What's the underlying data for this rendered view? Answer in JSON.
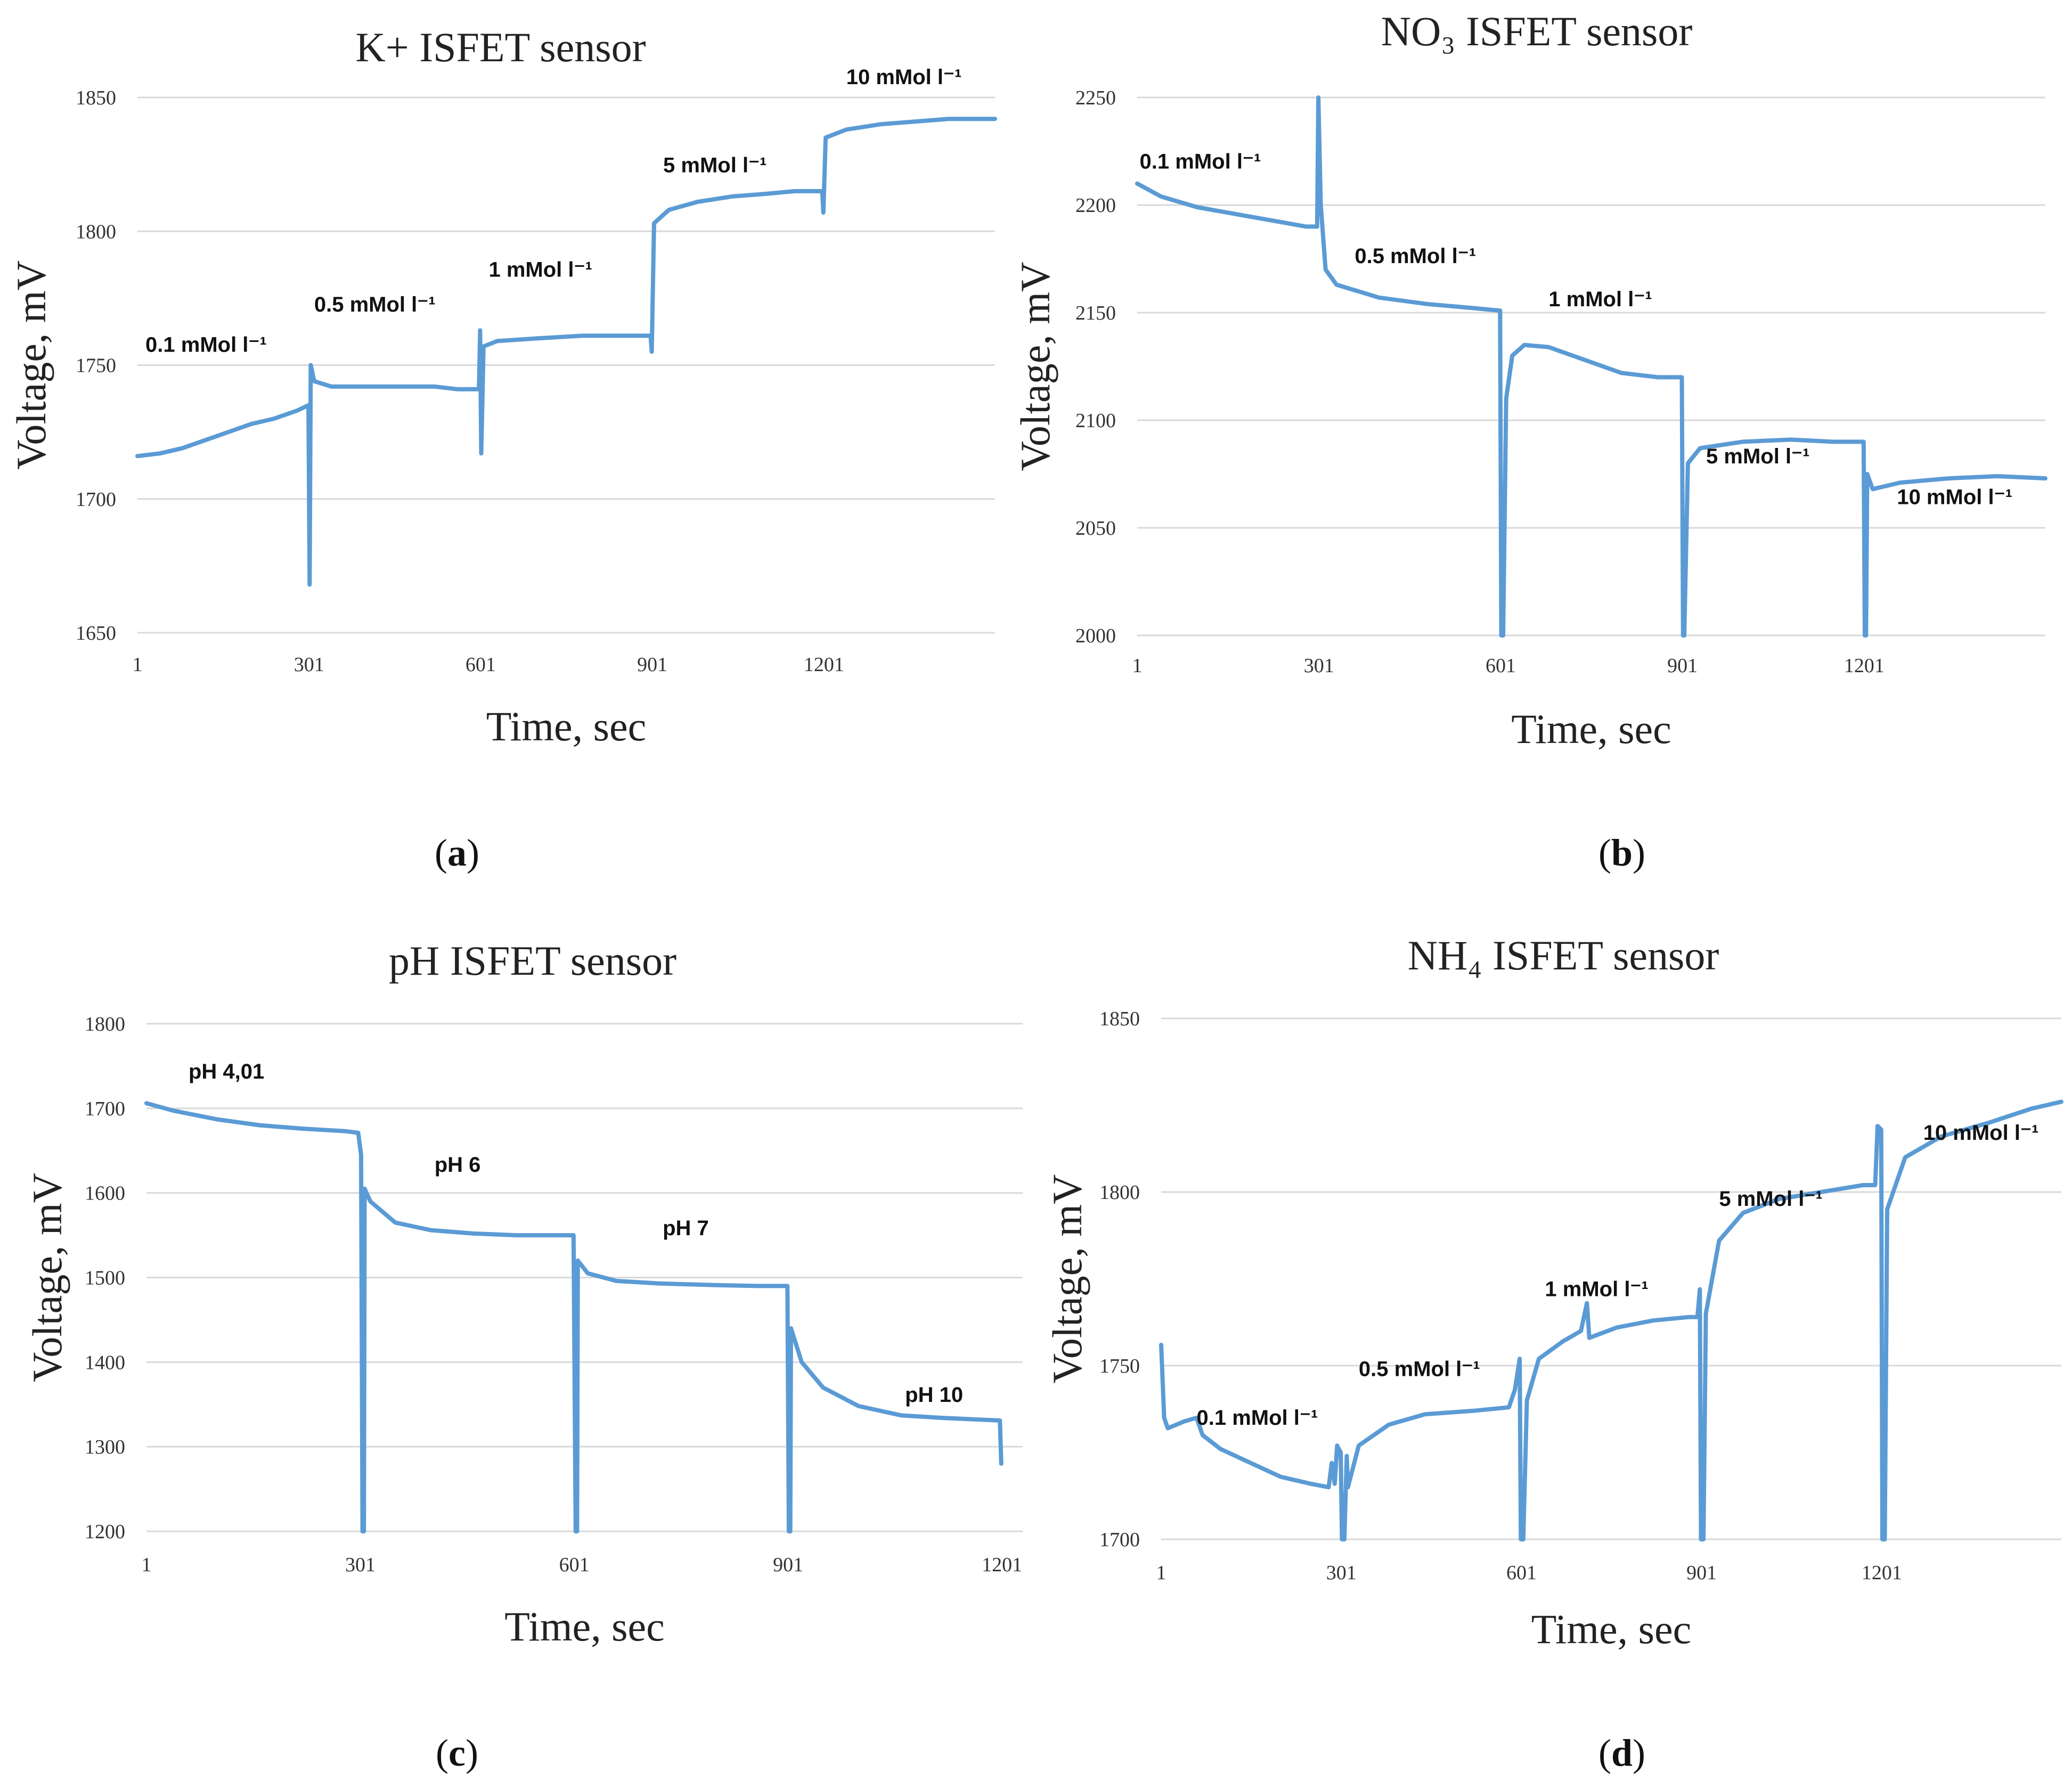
{
  "colors": {
    "series": "#5b9bd5",
    "grid": "#d9d9d9"
  },
  "chart_data": [
    {
      "panel": "a",
      "panel_label": "a",
      "type": "line",
      "title": "K+ ISFET sensor",
      "xlabel": "Time, sec",
      "ylabel": "Voltage, mV",
      "xlim": [
        1,
        1500
      ],
      "ylim": [
        1650,
        1850
      ],
      "yticks": [
        1650,
        1700,
        1750,
        1800,
        1850
      ],
      "xticks": [
        1,
        301,
        601,
        901,
        1201
      ],
      "annotations": [
        {
          "text": "0.1 mMol l⁻¹",
          "x": 15,
          "y": 1755
        },
        {
          "text": "0.5 mMol l⁻¹",
          "x": 310,
          "y": 1770
        },
        {
          "text": "1 mMol l⁻¹",
          "x": 615,
          "y": 1783
        },
        {
          "text": "5 mMol l⁻¹",
          "x": 920,
          "y": 1822
        },
        {
          "text": "10 mMol l⁻¹",
          "x": 1240,
          "y": 1855
        }
      ],
      "series": [
        {
          "name": "K+",
          "points": [
            [
              1,
              1716
            ],
            [
              40,
              1717
            ],
            [
              80,
              1719
            ],
            [
              120,
              1722
            ],
            [
              160,
              1725
            ],
            [
              200,
              1728
            ],
            [
              240,
              1730
            ],
            [
              280,
              1733
            ],
            [
              300,
              1735
            ],
            [
              302,
              1668
            ],
            [
              304,
              1750
            ],
            [
              310,
              1744
            ],
            [
              340,
              1742
            ],
            [
              400,
              1742
            ],
            [
              460,
              1742
            ],
            [
              520,
              1742
            ],
            [
              560,
              1741
            ],
            [
              598,
              1741
            ],
            [
              600,
              1763
            ],
            [
              602,
              1717
            ],
            [
              606,
              1757
            ],
            [
              630,
              1759
            ],
            [
              700,
              1760
            ],
            [
              780,
              1761
            ],
            [
              860,
              1761
            ],
            [
              898,
              1761
            ],
            [
              900,
              1755
            ],
            [
              904,
              1803
            ],
            [
              930,
              1808
            ],
            [
              980,
              1811
            ],
            [
              1040,
              1813
            ],
            [
              1100,
              1814
            ],
            [
              1150,
              1815
            ],
            [
              1198,
              1815
            ],
            [
              1200,
              1807
            ],
            [
              1204,
              1835
            ],
            [
              1240,
              1838
            ],
            [
              1300,
              1840
            ],
            [
              1360,
              1841
            ],
            [
              1420,
              1842
            ],
            [
              1500,
              1842
            ]
          ]
        }
      ]
    },
    {
      "panel": "b",
      "panel_label": "b",
      "type": "line",
      "title": "NO₃ ISFET sensor",
      "xlabel": "Time, sec",
      "ylabel": "Voltage, mV",
      "xlim": [
        1,
        1500
      ],
      "ylim": [
        2000,
        2250
      ],
      "yticks": [
        2000,
        2050,
        2100,
        2150,
        2200,
        2250
      ],
      "xticks": [
        1,
        301,
        601,
        901,
        1201
      ],
      "annotations": [
        {
          "text": "0.1 mMol l⁻¹",
          "x": 5,
          "y": 2217
        },
        {
          "text": "0.5 mMol l⁻¹",
          "x": 360,
          "y": 2173
        },
        {
          "text": "1 mMol l⁻¹",
          "x": 680,
          "y": 2153
        },
        {
          "text": "5 mMol l⁻¹",
          "x": 940,
          "y": 2080
        },
        {
          "text": "10 mMol l⁻¹",
          "x": 1255,
          "y": 2061
        }
      ],
      "series": [
        {
          "name": "NO3",
          "points": [
            [
              1,
              2210
            ],
            [
              40,
              2204
            ],
            [
              100,
              2199
            ],
            [
              160,
              2196
            ],
            [
              220,
              2193
            ],
            [
              280,
              2190
            ],
            [
              298,
              2190
            ],
            [
              300,
              2250
            ],
            [
              304,
              2200
            ],
            [
              312,
              2170
            ],
            [
              330,
              2163
            ],
            [
              400,
              2157
            ],
            [
              480,
              2154
            ],
            [
              560,
              2152
            ],
            [
              598,
              2151
            ],
            [
              600,
              2151
            ],
            [
              602,
              2000
            ],
            [
              605,
              2000
            ],
            [
              610,
              2110
            ],
            [
              620,
              2130
            ],
            [
              640,
              2135
            ],
            [
              680,
              2134
            ],
            [
              740,
              2128
            ],
            [
              800,
              2122
            ],
            [
              860,
              2120
            ],
            [
              898,
              2120
            ],
            [
              900,
              2120
            ],
            [
              902,
              2000
            ],
            [
              904,
              2000
            ],
            [
              910,
              2080
            ],
            [
              930,
              2087
            ],
            [
              1000,
              2090
            ],
            [
              1080,
              2091
            ],
            [
              1150,
              2090
            ],
            [
              1198,
              2090
            ],
            [
              1200,
              2090
            ],
            [
              1202,
              2000
            ],
            [
              1204,
              2000
            ],
            [
              1206,
              2075
            ],
            [
              1215,
              2068
            ],
            [
              1260,
              2071
            ],
            [
              1340,
              2073
            ],
            [
              1420,
              2074
            ],
            [
              1500,
              2073
            ]
          ]
        }
      ]
    },
    {
      "panel": "c",
      "panel_label": "c",
      "type": "line",
      "title": "pH ISFET sensor",
      "xlabel": "Time, sec",
      "ylabel": "Voltage, mV",
      "xlim": [
        1,
        1230
      ],
      "ylim": [
        1200,
        1800
      ],
      "yticks": [
        1200,
        1300,
        1400,
        1500,
        1600,
        1700,
        1800
      ],
      "xticks": [
        1,
        301,
        601,
        901,
        1201
      ],
      "annotations": [
        {
          "text": "pH 4,01",
          "x": 60,
          "y": 1735
        },
        {
          "text": "pH 6",
          "x": 405,
          "y": 1625
        },
        {
          "text": "pH 7",
          "x": 725,
          "y": 1550
        },
        {
          "text": "pH 10",
          "x": 1065,
          "y": 1353
        }
      ],
      "series": [
        {
          "name": "pH",
          "points": [
            [
              1,
              1706
            ],
            [
              40,
              1697
            ],
            [
              100,
              1687
            ],
            [
              160,
              1680
            ],
            [
              220,
              1676
            ],
            [
              280,
              1673
            ],
            [
              298,
              1671
            ],
            [
              302,
              1645
            ],
            [
              304,
              1200
            ],
            [
              306,
              1200
            ],
            [
              307,
              1605
            ],
            [
              315,
              1590
            ],
            [
              350,
              1565
            ],
            [
              400,
              1556
            ],
            [
              460,
              1552
            ],
            [
              520,
              1550
            ],
            [
              598,
              1550
            ],
            [
              600,
              1550
            ],
            [
              603,
              1200
            ],
            [
              605,
              1200
            ],
            [
              606,
              1520
            ],
            [
              620,
              1505
            ],
            [
              660,
              1496
            ],
            [
              720,
              1493
            ],
            [
              800,
              1491
            ],
            [
              860,
              1490
            ],
            [
              898,
              1490
            ],
            [
              900,
              1490
            ],
            [
              902,
              1200
            ],
            [
              904,
              1200
            ],
            [
              905,
              1440
            ],
            [
              920,
              1400
            ],
            [
              950,
              1370
            ],
            [
              1000,
              1348
            ],
            [
              1060,
              1337
            ],
            [
              1120,
              1334
            ],
            [
              1170,
              1332
            ],
            [
              1198,
              1331
            ],
            [
              1200,
              1280
            ]
          ]
        }
      ]
    },
    {
      "panel": "d",
      "panel_label": "d",
      "type": "line",
      "title": "NH₄ ISFET sensor",
      "xlabel": "Time, sec",
      "ylabel": "Voltage, mV",
      "xlim": [
        1,
        1500
      ],
      "ylim": [
        1700,
        1850
      ],
      "yticks": [
        1700,
        1750,
        1800,
        1850
      ],
      "xticks": [
        1,
        301,
        601,
        901,
        1201
      ],
      "annotations": [
        {
          "text": "0.1 mMol l⁻¹",
          "x": 60,
          "y": 1733
        },
        {
          "text": "0.5 mMol l⁻¹",
          "x": 330,
          "y": 1747
        },
        {
          "text": "1 mMol l⁻¹",
          "x": 640,
          "y": 1770
        },
        {
          "text": "5 mMol l⁻¹",
          "x": 930,
          "y": 1796
        },
        {
          "text": "10 mMol l⁻¹",
          "x": 1270,
          "y": 1815
        }
      ],
      "series": [
        {
          "name": "NH4",
          "points": [
            [
              1,
              1756
            ],
            [
              6,
              1735
            ],
            [
              12,
              1732
            ],
            [
              40,
              1734
            ],
            [
              60,
              1735
            ],
            [
              70,
              1730
            ],
            [
              100,
              1726
            ],
            [
              150,
              1722
            ],
            [
              200,
              1718
            ],
            [
              250,
              1716
            ],
            [
              280,
              1715
            ],
            [
              285,
              1722
            ],
            [
              290,
              1716
            ],
            [
              294,
              1727
            ],
            [
              300,
              1725
            ],
            [
              302,
              1700
            ],
            [
              306,
              1700
            ],
            [
              310,
              1724
            ],
            [
              312,
              1715
            ],
            [
              330,
              1727
            ],
            [
              380,
              1733
            ],
            [
              440,
              1736
            ],
            [
              520,
              1737
            ],
            [
              580,
              1738
            ],
            [
              590,
              1743
            ],
            [
              598,
              1752
            ],
            [
              600,
              1700
            ],
            [
              604,
              1700
            ],
            [
              610,
              1740
            ],
            [
              630,
              1752
            ],
            [
              670,
              1757
            ],
            [
              700,
              1760
            ],
            [
              710,
              1768
            ],
            [
              714,
              1758
            ],
            [
              760,
              1761
            ],
            [
              820,
              1763
            ],
            [
              880,
              1764
            ],
            [
              894,
              1764
            ],
            [
              898,
              1772
            ],
            [
              900,
              1700
            ],
            [
              904,
              1700
            ],
            [
              908,
              1765
            ],
            [
              930,
              1786
            ],
            [
              970,
              1794
            ],
            [
              1030,
              1798
            ],
            [
              1100,
              1800
            ],
            [
              1170,
              1802
            ],
            [
              1190,
              1802
            ],
            [
              1194,
              1819
            ],
            [
              1200,
              1818
            ],
            [
              1202,
              1700
            ],
            [
              1206,
              1700
            ],
            [
              1210,
              1795
            ],
            [
              1240,
              1810
            ],
            [
              1300,
              1816
            ],
            [
              1380,
              1820
            ],
            [
              1450,
              1824
            ],
            [
              1500,
              1826
            ]
          ]
        }
      ]
    }
  ]
}
